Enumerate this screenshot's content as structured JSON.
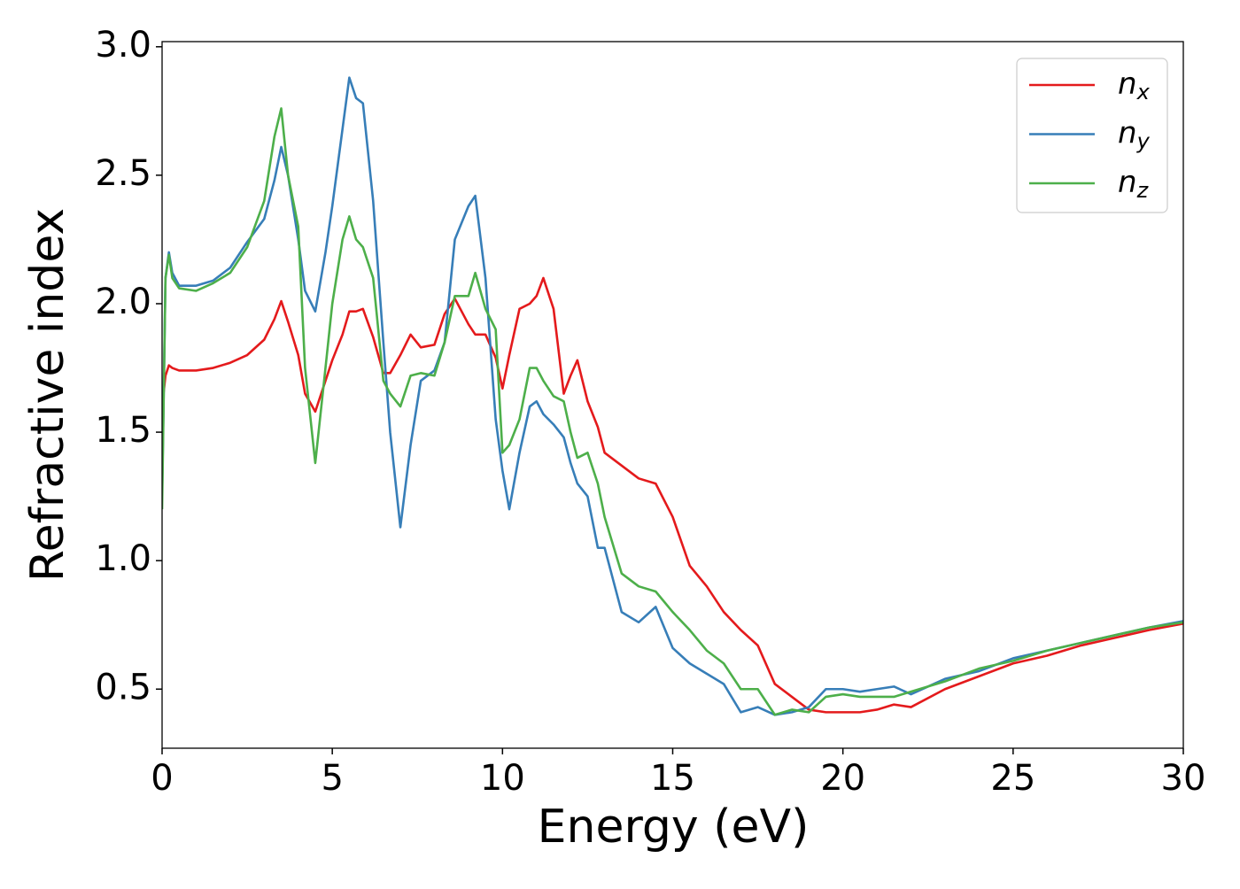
{
  "chart_data": {
    "type": "line",
    "x_label": "Energy (eV)",
    "y_label": "Refractive index",
    "x": [
      0,
      0.1,
      0.2,
      0.3,
      0.5,
      1,
      1.5,
      2,
      2.5,
      3,
      3.3,
      3.5,
      3.7,
      4,
      4.2,
      4.5,
      4.8,
      5,
      5.3,
      5.5,
      5.7,
      5.9,
      6.2,
      6.5,
      6.7,
      7,
      7.3,
      7.6,
      8,
      8.3,
      8.6,
      9,
      9.2,
      9.5,
      9.8,
      10,
      10.2,
      10.5,
      10.8,
      11,
      11.2,
      11.5,
      11.8,
      12,
      12.2,
      12.5,
      12.8,
      13,
      13.5,
      14,
      14.5,
      15,
      15.5,
      16,
      16.5,
      17,
      17.5,
      18,
      18.5,
      19,
      19.5,
      20,
      20.5,
      21,
      21.5,
      22,
      23,
      24,
      25,
      26,
      27,
      28,
      29,
      30
    ],
    "series": [
      {
        "name": "n_x",
        "color": "#e41a1c",
        "values": [
          1.6,
          1.72,
          1.76,
          1.75,
          1.74,
          1.74,
          1.75,
          1.77,
          1.8,
          1.86,
          1.94,
          2.01,
          1.93,
          1.8,
          1.65,
          1.58,
          1.7,
          1.78,
          1.88,
          1.97,
          1.97,
          1.98,
          1.87,
          1.73,
          1.73,
          1.8,
          1.88,
          1.83,
          1.84,
          1.96,
          2.02,
          1.92,
          1.88,
          1.88,
          1.79,
          1.67,
          1.8,
          1.98,
          2.0,
          2.03,
          2.1,
          1.98,
          1.65,
          1.72,
          1.78,
          1.62,
          1.52,
          1.42,
          1.37,
          1.32,
          1.3,
          1.17,
          0.98,
          0.9,
          0.8,
          0.73,
          0.67,
          0.52,
          0.47,
          0.42,
          0.41,
          0.41,
          0.41,
          0.42,
          0.44,
          0.43,
          0.5,
          0.55,
          0.6,
          0.63,
          0.67,
          0.7,
          0.73,
          0.755
        ]
      },
      {
        "name": "n_y",
        "color": "#377eb8",
        "values": [
          1.25,
          2.1,
          2.2,
          2.12,
          2.07,
          2.07,
          2.09,
          2.14,
          2.24,
          2.33,
          2.48,
          2.61,
          2.5,
          2.25,
          2.05,
          1.97,
          2.2,
          2.38,
          2.68,
          2.88,
          2.8,
          2.78,
          2.4,
          1.85,
          1.5,
          1.13,
          1.45,
          1.7,
          1.74,
          1.85,
          2.25,
          2.38,
          2.42,
          2.1,
          1.55,
          1.35,
          1.2,
          1.42,
          1.6,
          1.62,
          1.57,
          1.53,
          1.48,
          1.38,
          1.3,
          1.25,
          1.05,
          1.05,
          0.8,
          0.76,
          0.82,
          0.66,
          0.6,
          0.56,
          0.52,
          0.41,
          0.43,
          0.4,
          0.41,
          0.43,
          0.5,
          0.5,
          0.49,
          0.5,
          0.51,
          0.48,
          0.54,
          0.57,
          0.62,
          0.65,
          0.68,
          0.71,
          0.74,
          0.765
        ]
      },
      {
        "name": "n_z",
        "color": "#4daf4a",
        "values": [
          1.2,
          2.1,
          2.19,
          2.1,
          2.06,
          2.05,
          2.08,
          2.12,
          2.22,
          2.4,
          2.65,
          2.76,
          2.5,
          2.3,
          1.75,
          1.38,
          1.75,
          2.0,
          2.25,
          2.34,
          2.25,
          2.22,
          2.1,
          1.7,
          1.65,
          1.6,
          1.72,
          1.73,
          1.72,
          1.85,
          2.03,
          2.03,
          2.12,
          1.98,
          1.9,
          1.42,
          1.45,
          1.55,
          1.75,
          1.75,
          1.7,
          1.64,
          1.62,
          1.5,
          1.4,
          1.42,
          1.3,
          1.17,
          0.95,
          0.9,
          0.88,
          0.8,
          0.73,
          0.65,
          0.6,
          0.5,
          0.5,
          0.4,
          0.42,
          0.41,
          0.47,
          0.48,
          0.47,
          0.47,
          0.47,
          0.49,
          0.53,
          0.58,
          0.61,
          0.65,
          0.68,
          0.71,
          0.74,
          0.76
        ]
      }
    ],
    "xlim": [
      0,
      30
    ],
    "xticks": [
      0,
      5,
      10,
      15,
      20,
      25,
      30
    ],
    "ylim": [
      0.27,
      3.02
    ],
    "yticks": [
      0.5,
      {
        "value": 1,
        "label": "1.0"
      },
      1.5,
      {
        "value": 2,
        "label": "2.0"
      },
      2.5,
      {
        "value": 3,
        "label": "3.0"
      }
    ],
    "grid": false,
    "legend": "upper right"
  }
}
